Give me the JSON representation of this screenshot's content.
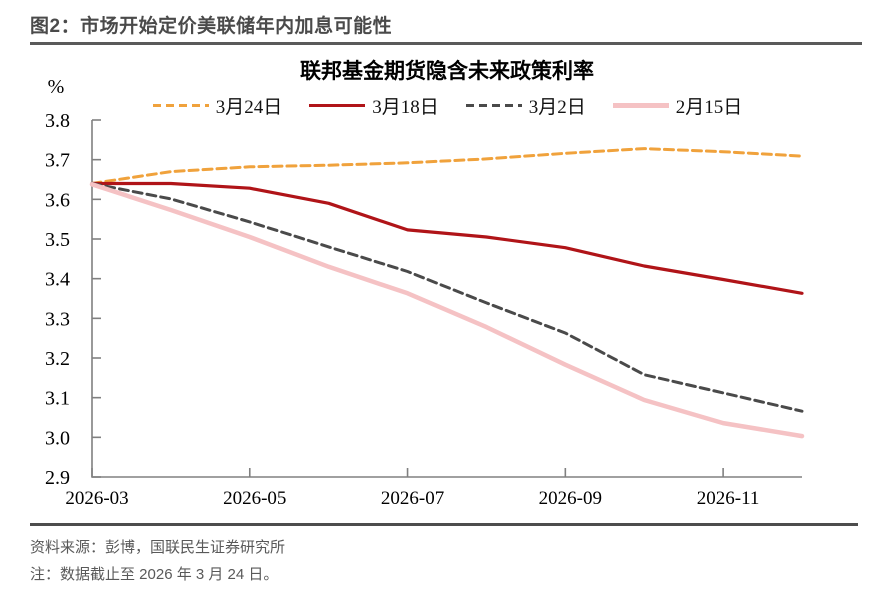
{
  "header": {
    "title": "图2：市场开始定价美联储年内加息可能性"
  },
  "footer": {
    "source": "资料来源：彭博，国联民生证券研究所",
    "note": "注：数据截止至 2026 年 3 月 24 日。"
  },
  "chart_data": {
    "type": "line",
    "title": "联邦基金期货隐含未来政策利率",
    "unit_label": "%",
    "x_months": [
      "2026-03",
      "2026-04",
      "2026-05",
      "2026-06",
      "2026-07",
      "2026-08",
      "2026-09",
      "2026-10",
      "2026-11",
      "2026-12"
    ],
    "xtick_labels": [
      "2026-03",
      "2026-05",
      "2026-07",
      "2026-09",
      "2026-11"
    ],
    "xtick_month_index": [
      0,
      2,
      4,
      6,
      8
    ],
    "ytick_labels": [
      "3.8",
      "3.7",
      "3.6",
      "3.5",
      "3.4",
      "3.3",
      "3.2",
      "3.1",
      "3.0",
      "2.9"
    ],
    "ylim": [
      2.9,
      3.8
    ],
    "grid": false,
    "legend_position": "top",
    "axis_color": "#808080",
    "text_color": "#000000",
    "series": [
      {
        "name": "3月24日",
        "color": "#F0A23C",
        "style": "dashed",
        "width": 3,
        "values": [
          3.64,
          3.67,
          3.682,
          3.686,
          3.692,
          3.702,
          3.716,
          3.728,
          3.72,
          3.709
        ]
      },
      {
        "name": "3月18日",
        "color": "#B01418",
        "style": "solid",
        "width": 3.2,
        "values": [
          3.64,
          3.64,
          3.628,
          3.59,
          3.523,
          3.505,
          3.478,
          3.432,
          3.398,
          3.363
        ]
      },
      {
        "name": "3月2日",
        "color": "#4A4A4A",
        "style": "dashed",
        "width": 3,
        "values": [
          3.64,
          3.601,
          3.543,
          3.48,
          3.418,
          3.339,
          3.263,
          3.158,
          3.112,
          3.066
        ]
      },
      {
        "name": "2月15日",
        "color": "#F5C2C4",
        "style": "solid",
        "width": 4.5,
        "values": [
          3.638,
          3.573,
          3.505,
          3.43,
          3.363,
          3.278,
          3.183,
          3.094,
          3.036,
          3.003
        ]
      }
    ]
  }
}
